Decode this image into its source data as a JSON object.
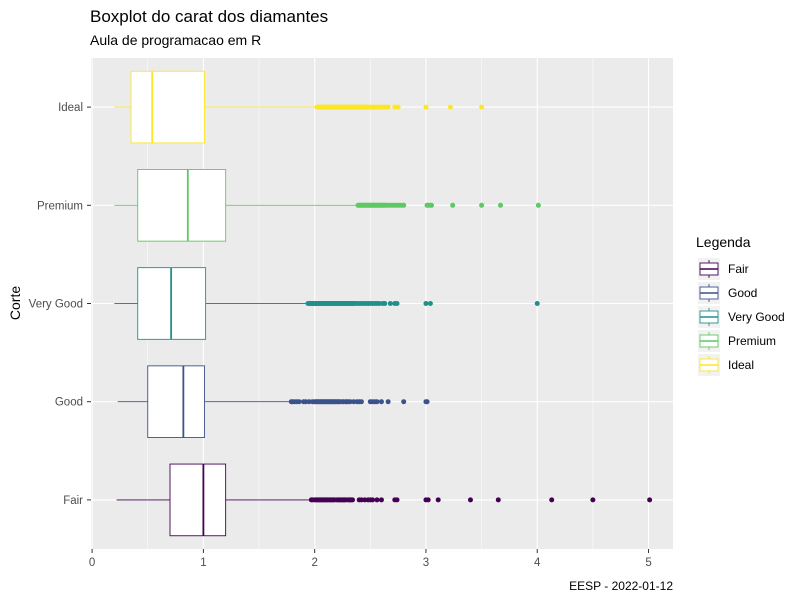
{
  "chart_data": {
    "type": "boxplot",
    "orientation": "horizontal",
    "title": "Boxplot do carat dos diamantes",
    "subtitle": "Aula de programacao em R",
    "xlabel": "",
    "ylabel": "Corte",
    "caption": "EESP - 2022-01-12",
    "xlim": [
      0,
      5.2
    ],
    "xticks": [
      "0",
      "1",
      "2",
      "3",
      "4",
      "5"
    ],
    "grid": true,
    "legend": {
      "title": "Legenda",
      "position": "right",
      "entries": [
        "Fair",
        "Good",
        "Very Good",
        "Premium",
        "Ideal"
      ]
    },
    "categories": [
      "Fair",
      "Good",
      "Very Good",
      "Premium",
      "Ideal"
    ],
    "series": [
      {
        "name": "Fair",
        "color": "#440154",
        "whisker_low": 0.22,
        "q1": 0.7,
        "median": 1.0,
        "q3": 1.2,
        "whisker_high": 1.95,
        "outliers": [
          1.97,
          1.98,
          2.0,
          2.01,
          2.02,
          2.03,
          2.04,
          2.05,
          2.06,
          2.07,
          2.08,
          2.09,
          2.1,
          2.11,
          2.12,
          2.13,
          2.14,
          2.15,
          2.16,
          2.17,
          2.18,
          2.2,
          2.21,
          2.22,
          2.23,
          2.24,
          2.25,
          2.26,
          2.27,
          2.28,
          2.3,
          2.31,
          2.32,
          2.33,
          2.34,
          2.4,
          2.42,
          2.45,
          2.48,
          2.5,
          2.52,
          2.56,
          2.6,
          2.72,
          2.74,
          3.0,
          3.02,
          3.11,
          3.4,
          3.65,
          4.13,
          4.5,
          5.01
        ]
      },
      {
        "name": "Good",
        "color": "#3b528b",
        "whisker_low": 0.23,
        "q1": 0.5,
        "median": 0.82,
        "q3": 1.01,
        "whisker_high": 1.77,
        "outliers": [
          1.79,
          1.8,
          1.82,
          1.84,
          1.86,
          1.9,
          1.92,
          1.95,
          1.98,
          2.0,
          2.01,
          2.02,
          2.03,
          2.04,
          2.05,
          2.06,
          2.07,
          2.08,
          2.09,
          2.1,
          2.11,
          2.12,
          2.13,
          2.14,
          2.15,
          2.16,
          2.17,
          2.18,
          2.19,
          2.2,
          2.21,
          2.22,
          2.23,
          2.25,
          2.26,
          2.28,
          2.29,
          2.3,
          2.32,
          2.35,
          2.38,
          2.4,
          2.42,
          2.5,
          2.52,
          2.54,
          2.56,
          2.6,
          2.66,
          2.8,
          3.0,
          3.01
        ]
      },
      {
        "name": "Very Good",
        "color": "#21908c",
        "whisker_low": 0.2,
        "q1": 0.41,
        "median": 0.71,
        "q3": 1.02,
        "whisker_high": 1.93,
        "outliers": [
          1.94,
          1.95,
          1.96,
          1.97,
          1.98,
          1.99,
          2.0,
          2.01,
          2.02,
          2.03,
          2.04,
          2.05,
          2.06,
          2.07,
          2.08,
          2.09,
          2.1,
          2.11,
          2.12,
          2.13,
          2.14,
          2.15,
          2.16,
          2.17,
          2.18,
          2.19,
          2.2,
          2.21,
          2.22,
          2.23,
          2.24,
          2.25,
          2.26,
          2.27,
          2.28,
          2.29,
          2.3,
          2.31,
          2.32,
          2.33,
          2.34,
          2.35,
          2.36,
          2.38,
          2.4,
          2.42,
          2.44,
          2.46,
          2.48,
          2.5,
          2.52,
          2.54,
          2.56,
          2.58,
          2.61,
          2.63,
          2.68,
          2.72,
          2.74,
          3.0,
          3.04,
          4.0
        ]
      },
      {
        "name": "Premium",
        "color": "#5ec962",
        "whisker_low": 0.2,
        "q1": 0.41,
        "median": 0.86,
        "q3": 1.2,
        "whisker_high": 2.38,
        "outliers": [
          2.39,
          2.4,
          2.41,
          2.42,
          2.43,
          2.44,
          2.45,
          2.46,
          2.47,
          2.48,
          2.49,
          2.5,
          2.51,
          2.52,
          2.53,
          2.54,
          2.55,
          2.56,
          2.57,
          2.58,
          2.59,
          2.6,
          2.61,
          2.62,
          2.63,
          2.64,
          2.66,
          2.68,
          2.7,
          2.72,
          2.74,
          2.76,
          2.78,
          2.8,
          3.01,
          3.02,
          3.04,
          3.05,
          3.24,
          3.5,
          3.67,
          4.01
        ]
      },
      {
        "name": "Ideal",
        "color": "#fde725",
        "whisker_low": 0.2,
        "q1": 0.35,
        "median": 0.54,
        "q3": 1.01,
        "whisker_high": 2.02,
        "outliers": [
          2.02,
          2.03,
          2.04,
          2.05,
          2.06,
          2.07,
          2.08,
          2.09,
          2.1,
          2.11,
          2.12,
          2.13,
          2.14,
          2.15,
          2.16,
          2.17,
          2.18,
          2.19,
          2.2,
          2.21,
          2.22,
          2.23,
          2.24,
          2.25,
          2.26,
          2.27,
          2.28,
          2.29,
          2.3,
          2.31,
          2.32,
          2.33,
          2.34,
          2.35,
          2.36,
          2.37,
          2.38,
          2.39,
          2.4,
          2.41,
          2.42,
          2.43,
          2.44,
          2.45,
          2.46,
          2.47,
          2.48,
          2.5,
          2.52,
          2.54,
          2.56,
          2.58,
          2.6,
          2.62,
          2.64,
          2.66,
          2.72,
          2.75,
          3.0,
          3.22,
          3.5
        ]
      }
    ]
  }
}
